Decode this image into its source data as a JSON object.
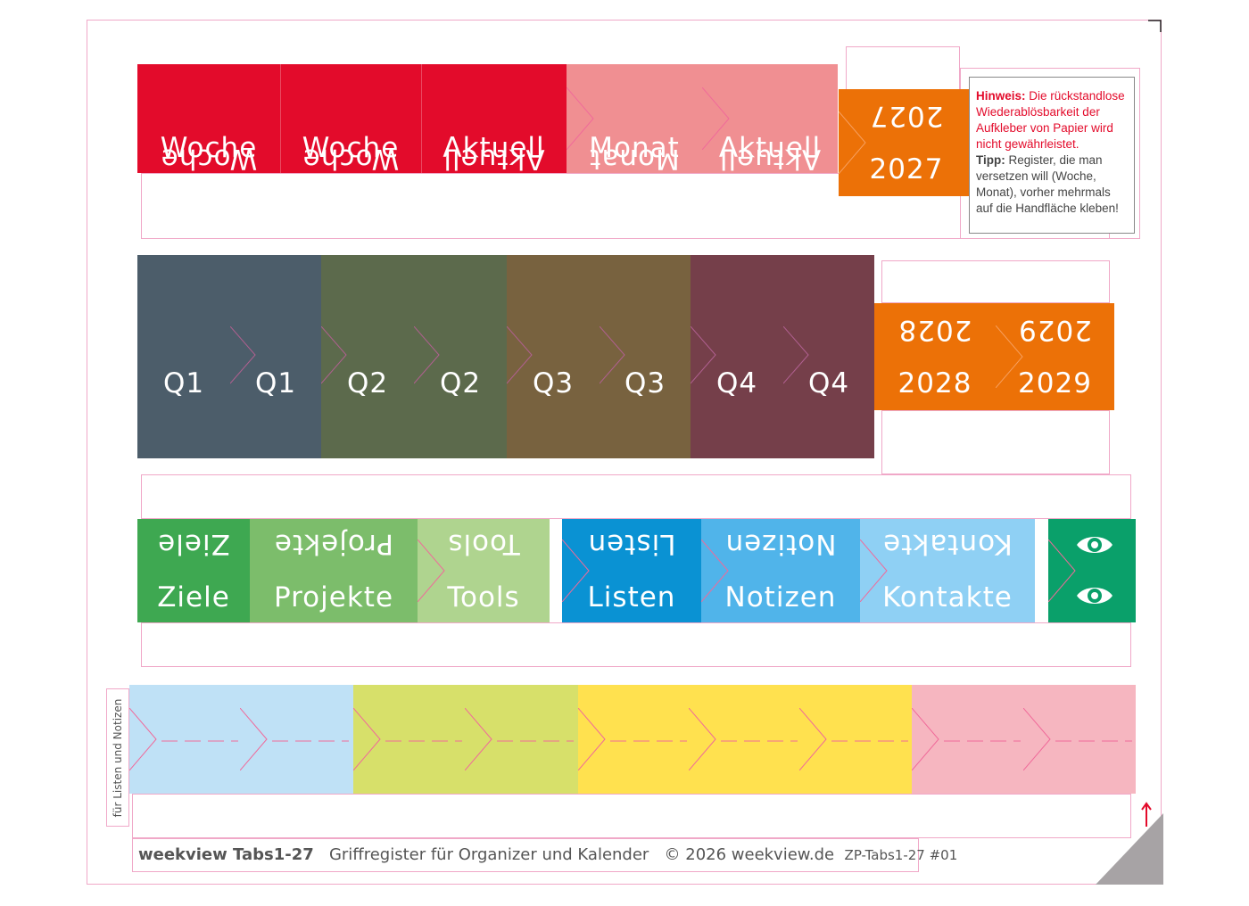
{
  "row1": [
    {
      "top": "Woche",
      "bottom": "Woche",
      "color": "#e30b2b"
    },
    {
      "top": "Woche",
      "bottom": "Woche",
      "color": "#e30b2b"
    },
    {
      "top": "Aktuell",
      "bottom": "Aktuell",
      "color": "#e30b2b"
    },
    {
      "top": "Monat",
      "bottom": "Monat",
      "color": "#f08f92"
    },
    {
      "top": "Aktuell",
      "bottom": "Aktuell",
      "color": "#f08f92"
    },
    {
      "top": "2027",
      "bottom": "2027",
      "color": "#ec7107"
    }
  ],
  "row2": [
    {
      "top": "Q1",
      "bottom": "Q1",
      "color": "#4c5d6a"
    },
    {
      "top": "Q1",
      "bottom": "Q1",
      "color": "#4c5d6a"
    },
    {
      "top": "Q2",
      "bottom": "Q2",
      "color": "#5c6a4c"
    },
    {
      "top": "Q2",
      "bottom": "Q2",
      "color": "#5c6a4c"
    },
    {
      "top": "Q3",
      "bottom": "Q3",
      "color": "#78623f"
    },
    {
      "top": "Q3",
      "bottom": "Q3",
      "color": "#78623f"
    },
    {
      "top": "Q4",
      "bottom": "Q4",
      "color": "#753f4a"
    },
    {
      "top": "Q4",
      "bottom": "Q4",
      "color": "#753f4a"
    },
    {
      "top": "2028",
      "bottom": "2028",
      "color": "#ec7107"
    },
    {
      "top": "2029",
      "bottom": "2029",
      "color": "#ec7107"
    }
  ],
  "row3": [
    {
      "top": "Ziele",
      "bottom": "Ziele",
      "color": "#3ea851"
    },
    {
      "top": "Projekte",
      "bottom": "Projekte",
      "color": "#7cbd6b"
    },
    {
      "top": "Tools",
      "bottom": "Tools",
      "color": "#afd48f"
    },
    {
      "top": "Listen",
      "bottom": "Listen",
      "color": "#0a92d3"
    },
    {
      "top": "Notizen",
      "bottom": "Notizen",
      "color": "#50b4ea"
    },
    {
      "top": "Kontakte",
      "bottom": "Kontakte",
      "color": "#8fd0f4"
    },
    {
      "icon": "eye-icon",
      "color": "#0aa06a"
    }
  ],
  "row4": [
    {
      "color": "#bfe1f6"
    },
    {
      "color": "#bfe1f6"
    },
    {
      "color": "#d7e06a"
    },
    {
      "color": "#d7e06a"
    },
    {
      "color": "#ffe14f"
    },
    {
      "color": "#ffe14f"
    },
    {
      "color": "#ffe14f"
    },
    {
      "color": "#f6b6c0"
    },
    {
      "color": "#f6b6c0"
    }
  ],
  "hint": {
    "label": "Hinweis:",
    "text": "Die rückstandlose Wiederablösbarkeit der Aufkleber von Papier wird nicht gewährleistet.",
    "tip_label": "Tipp:",
    "tip_text": "Register, die man versetzen will (Woche, Monat), vorher mehrmals auf die Handfläche kleben!"
  },
  "side_label": "für Listen und Notizen",
  "footer": {
    "brand": "weekview Tabs1-27",
    "subtitle": "Griffregister für Organizer und Kalender",
    "copyright": "© 2026 weekview.de",
    "code": "ZP-Tabs1-27 #01"
  },
  "colors": {
    "cutline": "#f0a8c8",
    "arrow": "#e30b2b",
    "corner": "#a7a3a5"
  }
}
